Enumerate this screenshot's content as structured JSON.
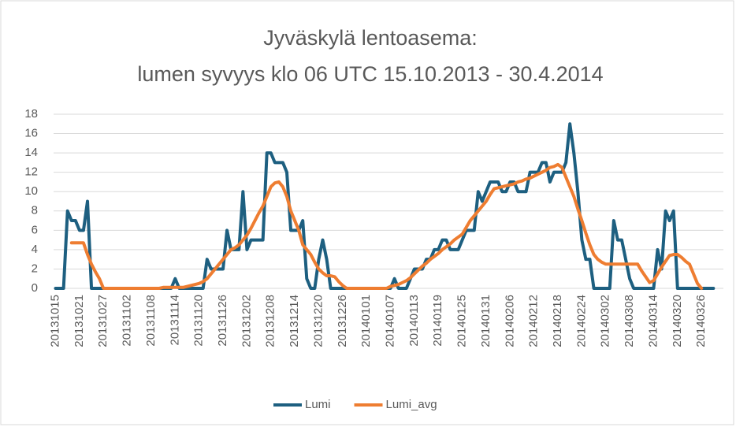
{
  "chart_data": {
    "type": "line",
    "title": [
      "Jyväskylä lentoasema:",
      "lumen syvyys klo 06 UTC 15.10.2013 - 30.4.2014"
    ],
    "categories": [
      "20131015",
      null,
      null,
      null,
      null,
      null,
      "20131021",
      null,
      null,
      null,
      null,
      null,
      "20131027",
      null,
      null,
      null,
      null,
      null,
      "20131102",
      null,
      null,
      null,
      null,
      null,
      "20131108",
      null,
      null,
      null,
      null,
      null,
      "20131114",
      null,
      null,
      null,
      null,
      null,
      "20131120",
      null,
      null,
      null,
      null,
      null,
      "20131126",
      null,
      null,
      null,
      null,
      null,
      "20131202",
      null,
      null,
      null,
      null,
      null,
      "20131208",
      null,
      null,
      null,
      null,
      null,
      "20131214",
      null,
      null,
      null,
      null,
      null,
      "20131220",
      null,
      null,
      null,
      null,
      null,
      "20131226",
      null,
      null,
      null,
      null,
      null,
      "20140101",
      null,
      null,
      null,
      null,
      null,
      "20140107",
      null,
      null,
      null,
      null,
      null,
      "20140113",
      null,
      null,
      null,
      null,
      null,
      "20140119",
      null,
      null,
      null,
      null,
      null,
      "20140125",
      null,
      null,
      null,
      null,
      null,
      "20140131",
      null,
      null,
      null,
      null,
      null,
      "20140206",
      null,
      null,
      null,
      null,
      null,
      "20140212",
      null,
      null,
      null,
      null,
      null,
      "20140218",
      null,
      null,
      null,
      null,
      null,
      "20140224",
      null,
      null,
      null,
      null,
      null,
      "20140302",
      null,
      null,
      null,
      null,
      null,
      "20140308",
      null,
      null,
      null,
      null,
      null,
      "20140314",
      null,
      null,
      null,
      null,
      null,
      "20140320",
      null,
      null,
      null,
      null,
      null,
      "20140326",
      null,
      null,
      null,
      null,
      null
    ],
    "series": [
      {
        "name": "Lumi",
        "color": "#1d5f80",
        "values": [
          0,
          0,
          0,
          8,
          7,
          7,
          6,
          6,
          9,
          0,
          0,
          0,
          0,
          0,
          0,
          0,
          0,
          0,
          0,
          0,
          0,
          0,
          0,
          0,
          0,
          0,
          0,
          0,
          0,
          0,
          1,
          0,
          0,
          0,
          0,
          0,
          0,
          0,
          3,
          2,
          2,
          2,
          2,
          6,
          4,
          4,
          4,
          10,
          4,
          5,
          5,
          5,
          5,
          14,
          14,
          13,
          13,
          13,
          12,
          6,
          6,
          6,
          7,
          1,
          0,
          0,
          3,
          5,
          3,
          0,
          0,
          0,
          0,
          0,
          0,
          0,
          0,
          0,
          0,
          0,
          0,
          0,
          0,
          0,
          0,
          1,
          0,
          0,
          0,
          1,
          2,
          2,
          2,
          3,
          3,
          4,
          4,
          5,
          5,
          4,
          4,
          4,
          5,
          6,
          6,
          6,
          10,
          9,
          10,
          11,
          11,
          11,
          10,
          10,
          11,
          11,
          10,
          10,
          10,
          12,
          12,
          12,
          13,
          13,
          11,
          12,
          12,
          12,
          13,
          17,
          14,
          10,
          5,
          3,
          3,
          0,
          0,
          0,
          0,
          0,
          7,
          5,
          5,
          3,
          1,
          0,
          0,
          0,
          0,
          0,
          0,
          4,
          2,
          8,
          7,
          8,
          0,
          0,
          0,
          0,
          0,
          0,
          0,
          0,
          0,
          0,
          null,
          null
        ]
      },
      {
        "name": "Lumi_avg",
        "color": "#ee7d31",
        "values": [
          null,
          null,
          null,
          null,
          4.7,
          4.7,
          4.7,
          4.7,
          3.5,
          2.5,
          1.7,
          1,
          0,
          0,
          0,
          0,
          0,
          0,
          0,
          0,
          0,
          0,
          0,
          0,
          0,
          0,
          0,
          0.1,
          0.1,
          0.1,
          0.1,
          0.1,
          0.1,
          0.2,
          0.3,
          0.4,
          0.5,
          0.7,
          1,
          1.5,
          2,
          2.5,
          3,
          3.5,
          4,
          4.2,
          4.5,
          5,
          5.5,
          6.2,
          7,
          7.8,
          8.5,
          9.5,
          10.5,
          10.9,
          11,
          10.5,
          9.5,
          8,
          7,
          6,
          4.5,
          4,
          3.5,
          2.7,
          2,
          1.6,
          1.3,
          1.3,
          1.2,
          0.7,
          0.3,
          0,
          0,
          0,
          0,
          0,
          0,
          0,
          0,
          0,
          0,
          0,
          0.2,
          0.3,
          0.4,
          0.6,
          0.8,
          1.1,
          1.5,
          1.9,
          2.3,
          2.6,
          3,
          3.3,
          3.6,
          4,
          4.3,
          4.6,
          5,
          5.3,
          5.6,
          6.3,
          7,
          7.5,
          8,
          8.5,
          9,
          9.7,
          10.3,
          10.4,
          10.5,
          10.6,
          10.7,
          10.8,
          11,
          11.1,
          11.3,
          11.4,
          11.6,
          11.8,
          12,
          12.2,
          12.5,
          12.6,
          12.8,
          12.5,
          11.5,
          10.5,
          9.5,
          8.2,
          7,
          5.7,
          4.5,
          3.5,
          3,
          2.7,
          2.5,
          2.5,
          2.5,
          2.5,
          2.5,
          2.5,
          2.5,
          2.5,
          2.5,
          1.8,
          1.2,
          0.6,
          0.8,
          1.5,
          2.2,
          2.8,
          3.4,
          3.5,
          3.5,
          3.2,
          2.8,
          2.5,
          1.5,
          0.5,
          0,
          null,
          null,
          null,
          null,
          null
        ]
      }
    ],
    "ylim": [
      0,
      18
    ],
    "yticks": [
      0,
      2,
      4,
      6,
      8,
      10,
      12,
      14,
      16,
      18
    ],
    "grid": true,
    "legend": "bottom"
  }
}
